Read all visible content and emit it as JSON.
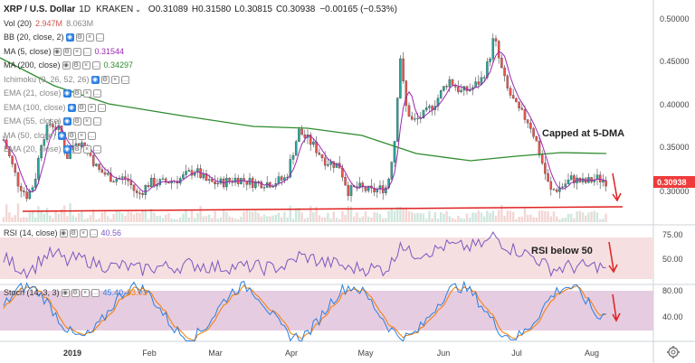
{
  "header": {
    "symbol": "XRP / U.S. Dollar",
    "timeframe": "1D",
    "exchange": "KRAKEN",
    "ohlc": {
      "open": "O0.31089",
      "high": "H0.31580",
      "low": "L0.30815",
      "close": "C0.30938"
    },
    "change": "−0.00165 (−0.53%)"
  },
  "legend": [
    {
      "label": "Vol (20)",
      "value": "2.947M",
      "value2": "8.063M",
      "color": "#d0554f"
    },
    {
      "label": "BB (20, close, 2)",
      "value": "",
      "color": "#2a7fe0"
    },
    {
      "label": "MA (5, close)",
      "value": "0.31544",
      "color": "#9c27b0"
    },
    {
      "label": "MA (200, close)",
      "value": "0.34297",
      "color": "#2e8b2e"
    },
    {
      "label": "Ichimoku (9, 26, 52, 26)",
      "value": "",
      "color": "#2a7fe0"
    },
    {
      "label": "EMA (21, close)",
      "value": "",
      "color": "#2a7fe0"
    },
    {
      "label": "EMA (100, close)",
      "value": "",
      "color": "#2a7fe0"
    },
    {
      "label": "EMA (55, close)",
      "value": "",
      "color": "#2a7fe0"
    },
    {
      "label": "MA (50, close)",
      "value": "",
      "color": "#2a7fe0"
    },
    {
      "label": "EMA (20, close)",
      "value": "",
      "color": "#2a7fe0"
    }
  ],
  "annotations": {
    "cap": "Capped at 5-DMA",
    "rsi_note": "RSI below 50"
  },
  "rsi": {
    "label": "RSI (14, close)",
    "value": "40.56"
  },
  "stoch": {
    "label": "Stoch (14, 3, 3)",
    "k": "45.40",
    "d": "53.03"
  },
  "price_axis": [
    "0.50000",
    "0.45000",
    "0.40000",
    "0.35000",
    "0.30000"
  ],
  "last_price": "0.30938",
  "rsi_axis": [
    "75.00",
    "50.00"
  ],
  "stoch_axis": [
    "80.00",
    "40.00"
  ],
  "time_axis": [
    "2019",
    "Feb",
    "Mar",
    "Apr",
    "May",
    "Jun",
    "Jul",
    "Aug"
  ],
  "colors": {
    "up": "#26a69a",
    "down": "#ef5350",
    "ma5": "#9c27b0",
    "ma200": "#2e8b2e",
    "support": "#e02020",
    "rsi_line": "#7e57c2",
    "k_line": "#2a7fe0",
    "d_line": "#f57c00",
    "band": "#f6dfe0",
    "stoch_band": "#e6cce0"
  },
  "chart_data": [
    {
      "type": "candlestick",
      "title": "XRP / U.S. Dollar 1D KRAKEN",
      "x": [
        "2019",
        "Feb",
        "Mar",
        "Apr",
        "May",
        "Jun",
        "Jul",
        "Aug"
      ],
      "close_approx": [
        0.36,
        0.31,
        0.31,
        0.35,
        0.3,
        0.42,
        0.38,
        0.31
      ],
      "last_price": 0.30938,
      "ylim": [
        0.27,
        0.51
      ],
      "series": [
        {
          "name": "MA (5, close)",
          "value": 0.31544
        },
        {
          "name": "MA (200, close)",
          "value": 0.34297
        }
      ],
      "annotations": [
        "Capped at 5-DMA"
      ],
      "support_level": 0.28
    },
    {
      "type": "line",
      "title": "RSI (14, close)",
      "last_value": 40.56,
      "ylim": [
        20,
        85
      ],
      "band": [
        30,
        70
      ],
      "annotations": [
        "RSI below 50"
      ]
    },
    {
      "type": "line",
      "title": "Stoch (14, 3, 3)",
      "series": [
        {
          "name": "%K",
          "last_value": 45.4
        },
        {
          "name": "%D",
          "last_value": 53.03
        }
      ],
      "ylim": [
        0,
        100
      ],
      "band": [
        20,
        80
      ]
    }
  ]
}
